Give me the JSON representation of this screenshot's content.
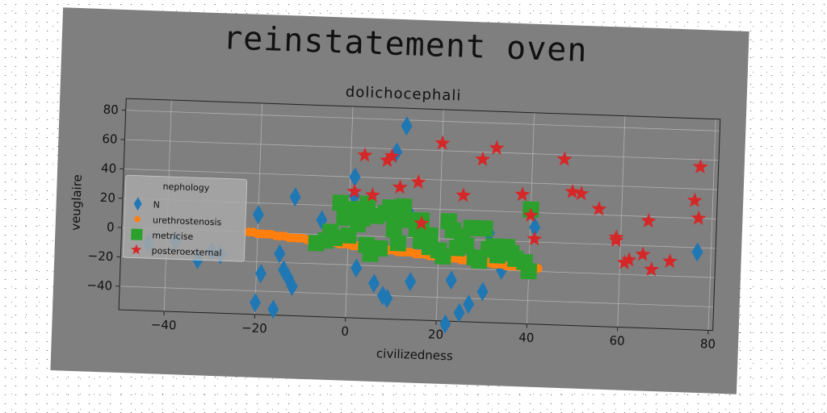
{
  "chart_data": {
    "type": "scatter",
    "title": "reinstatement oven",
    "subtitle": "dolichocephali",
    "xlabel": "civilizedness",
    "ylabel": "veuglaire",
    "xlim": [
      -50,
      81
    ],
    "ylim": [
      -56,
      88
    ],
    "xticks": [
      -40,
      -20,
      0,
      20,
      40,
      60,
      80
    ],
    "yticks": [
      -40,
      -20,
      0,
      20,
      40,
      60,
      80
    ],
    "grid": true,
    "legend": {
      "title": "nephology",
      "placement": "center-left"
    },
    "colors": {
      "background": "#7f7f7f",
      "N": "#1f77b4",
      "urethrostenosis": "#ff7f0e",
      "metricise": "#2ca02c",
      "posteroexternal": "#d62728"
    },
    "series": [
      {
        "name": "N",
        "marker": "diamond",
        "points": [
          [
            -44,
            -10
          ],
          [
            -38,
            -8
          ],
          [
            -33,
            -20
          ],
          [
            -30,
            -14
          ],
          [
            -28,
            -16
          ],
          [
            -20,
            12
          ],
          [
            -19,
            -28
          ],
          [
            -20,
            -48
          ],
          [
            -15,
            -14
          ],
          [
            -14,
            -25
          ],
          [
            -13,
            -30
          ],
          [
            -12,
            25
          ],
          [
            -12,
            -36
          ],
          [
            -16,
            -52
          ],
          [
            -6,
            10
          ],
          [
            1,
            40
          ],
          [
            1,
            27
          ],
          [
            2,
            -22
          ],
          [
            6,
            -32
          ],
          [
            8,
            -40
          ],
          [
            9,
            -42
          ],
          [
            10,
            58
          ],
          [
            12,
            76
          ],
          [
            13,
            18
          ],
          [
            14,
            -30
          ],
          [
            22,
            -58
          ],
          [
            23,
            -28
          ],
          [
            25,
            -50
          ],
          [
            27,
            -44
          ],
          [
            30,
            -35
          ],
          [
            31,
            5
          ],
          [
            34,
            -20
          ],
          [
            41,
            10
          ],
          [
            77,
            -3
          ]
        ]
      },
      {
        "name": "urethrostenosis",
        "marker": "circle",
        "points": [
          [
            -22,
            0
          ],
          [
            -21,
            0
          ],
          [
            -20,
            -1
          ],
          [
            -19,
            -1
          ],
          [
            -18,
            -1
          ],
          [
            -17,
            -1
          ],
          [
            -16,
            -2
          ],
          [
            -15,
            -2
          ],
          [
            -14,
            -2
          ],
          [
            -13,
            -3
          ],
          [
            -12,
            -3
          ],
          [
            -11,
            -3
          ],
          [
            -10,
            -3
          ],
          [
            -9,
            -4
          ],
          [
            -8,
            -4
          ],
          [
            -7,
            -4
          ],
          [
            -6,
            -5
          ],
          [
            -5,
            -5
          ],
          [
            -4,
            -5
          ],
          [
            -3,
            -5
          ],
          [
            -2,
            -6
          ],
          [
            -1,
            -6
          ],
          [
            0,
            -6
          ],
          [
            1,
            -7
          ],
          [
            2,
            -7
          ],
          [
            3,
            -7
          ],
          [
            4,
            -8
          ],
          [
            5,
            -8
          ],
          [
            6,
            -8
          ],
          [
            7,
            -8
          ],
          [
            8,
            -9
          ],
          [
            9,
            -9
          ],
          [
            10,
            -9
          ],
          [
            11,
            -10
          ],
          [
            12,
            -10
          ],
          [
            13,
            -10
          ],
          [
            14,
            -10
          ],
          [
            15,
            -11
          ],
          [
            16,
            -11
          ],
          [
            17,
            -11
          ],
          [
            18,
            -12
          ],
          [
            19,
            -12
          ],
          [
            20,
            -12
          ],
          [
            21,
            -13
          ],
          [
            22,
            -13
          ],
          [
            23,
            -13
          ],
          [
            24,
            -13
          ],
          [
            25,
            -14
          ],
          [
            26,
            -14
          ],
          [
            27,
            -14
          ],
          [
            28,
            -15
          ],
          [
            29,
            -15
          ],
          [
            30,
            -15
          ],
          [
            31,
            -15
          ],
          [
            32,
            -16
          ],
          [
            33,
            -16
          ],
          [
            34,
            -16
          ],
          [
            35,
            -17
          ],
          [
            36,
            -17
          ],
          [
            37,
            -17
          ],
          [
            38,
            -17
          ],
          [
            39,
            -18
          ],
          [
            40,
            -18
          ],
          [
            41,
            -18
          ],
          [
            42,
            -18
          ]
        ]
      },
      {
        "name": "metricise",
        "marker": "square",
        "points": [
          [
            -7,
            -6
          ],
          [
            -5,
            -4
          ],
          [
            -4,
            2
          ],
          [
            -3,
            -2
          ],
          [
            -2,
            22
          ],
          [
            -1,
            12
          ],
          [
            0,
            0
          ],
          [
            1,
            18
          ],
          [
            2,
            8
          ],
          [
            3,
            12
          ],
          [
            4,
            -6
          ],
          [
            4,
            22
          ],
          [
            5,
            -12
          ],
          [
            6,
            14
          ],
          [
            7,
            -8
          ],
          [
            8,
            16
          ],
          [
            9,
            20
          ],
          [
            10,
            5
          ],
          [
            10,
            15
          ],
          [
            11,
            -4
          ],
          [
            12,
            21
          ],
          [
            13,
            12
          ],
          [
            15,
            6
          ],
          [
            16,
            -2
          ],
          [
            16,
            12
          ],
          [
            18,
            2
          ],
          [
            18,
            -6
          ],
          [
            20,
            -8
          ],
          [
            21,
            -12
          ],
          [
            22,
            12
          ],
          [
            23,
            6
          ],
          [
            24,
            -6
          ],
          [
            25,
            2
          ],
          [
            26,
            -4
          ],
          [
            27,
            8
          ],
          [
            28,
            -12
          ],
          [
            29,
            -14
          ],
          [
            30,
            8
          ],
          [
            31,
            -6
          ],
          [
            32,
            -4
          ],
          [
            33,
            -10
          ],
          [
            34,
            -8
          ],
          [
            35,
            -4
          ],
          [
            36,
            -8
          ],
          [
            37,
            -12
          ],
          [
            39,
            -14
          ],
          [
            40,
            -20
          ],
          [
            40,
            22
          ]
        ]
      },
      {
        "name": "posteroexternal",
        "marker": "star",
        "points": [
          [
            1,
            30
          ],
          [
            3,
            55
          ],
          [
            5,
            28
          ],
          [
            8,
            52
          ],
          [
            9,
            55
          ],
          [
            11,
            34
          ],
          [
            15,
            38
          ],
          [
            16,
            10
          ],
          [
            20,
            65
          ],
          [
            25,
            30
          ],
          [
            29,
            55
          ],
          [
            32,
            63
          ],
          [
            38,
            32
          ],
          [
            40,
            18
          ],
          [
            41,
            2
          ],
          [
            47,
            57
          ],
          [
            49,
            35
          ],
          [
            51,
            34
          ],
          [
            55,
            24
          ],
          [
            59,
            5
          ],
          [
            59,
            3
          ],
          [
            61,
            -12
          ],
          [
            62,
            -10
          ],
          [
            65,
            -6
          ],
          [
            66,
            17
          ],
          [
            67,
            -16
          ],
          [
            71,
            -10
          ],
          [
            76,
            32
          ],
          [
            77,
            20
          ],
          [
            77,
            55
          ]
        ]
      }
    ]
  }
}
